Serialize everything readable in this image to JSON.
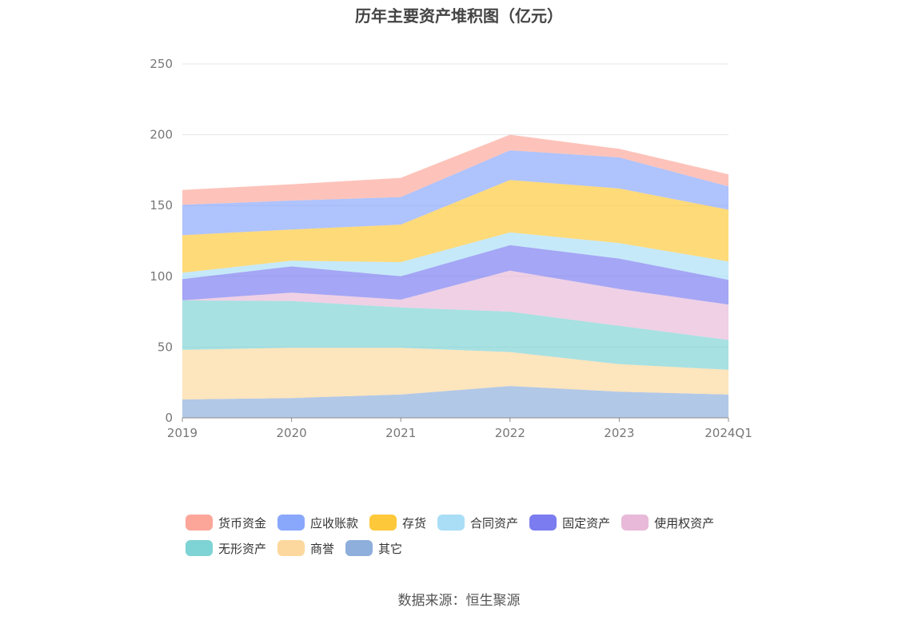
{
  "chart_data": {
    "type": "area",
    "stacked": true,
    "title": "历年主要资产堆积图（亿元）",
    "categories": [
      "2019",
      "2020",
      "2021",
      "2022",
      "2023",
      "2024Q1"
    ],
    "ylim": [
      0,
      250
    ],
    "yticks": [
      0,
      50,
      100,
      150,
      200,
      250
    ],
    "grid": true,
    "legend_position": "bottom",
    "series": [
      {
        "name": "其它",
        "color": "#8eaedc",
        "values": [
          13,
          14,
          16.5,
          22.5,
          18.5,
          16.5
        ]
      },
      {
        "name": "商誉",
        "color": "#fcd89e",
        "values": [
          35,
          35.5,
          33,
          24,
          19.5,
          17.5
        ]
      },
      {
        "name": "无形资产",
        "color": "#7ed3d4",
        "values": [
          35,
          33,
          28.5,
          28.5,
          27,
          21
        ]
      },
      {
        "name": "使用权资产",
        "color": "#e8b9d8",
        "values": [
          0,
          6,
          5.5,
          29,
          26,
          25
        ]
      },
      {
        "name": "固定资产",
        "color": "#7a7cf0",
        "values": [
          15,
          18.5,
          16.5,
          18,
          21.5,
          17.5
        ]
      },
      {
        "name": "合同资产",
        "color": "#a9def6",
        "values": [
          4.5,
          4,
          10,
          9,
          11,
          13
        ]
      },
      {
        "name": "存货",
        "color": "#fdc93a",
        "values": [
          26.5,
          22,
          26.5,
          37,
          38.5,
          36.5
        ]
      },
      {
        "name": "应收账款",
        "color": "#89a7fb",
        "values": [
          21.5,
          20.5,
          19.5,
          21,
          22,
          16.5
        ]
      },
      {
        "name": "货币资金",
        "color": "#fca69a",
        "values": [
          10.5,
          11.5,
          13.5,
          11,
          6,
          8.5
        ]
      }
    ],
    "legend": [
      [
        "货币资金",
        "应收账款",
        "存货",
        "合同资产",
        "固定资产",
        "使用权资产"
      ],
      [
        "无形资产",
        "商誉",
        "其它"
      ]
    ]
  },
  "source": "数据来源：恒生聚源"
}
